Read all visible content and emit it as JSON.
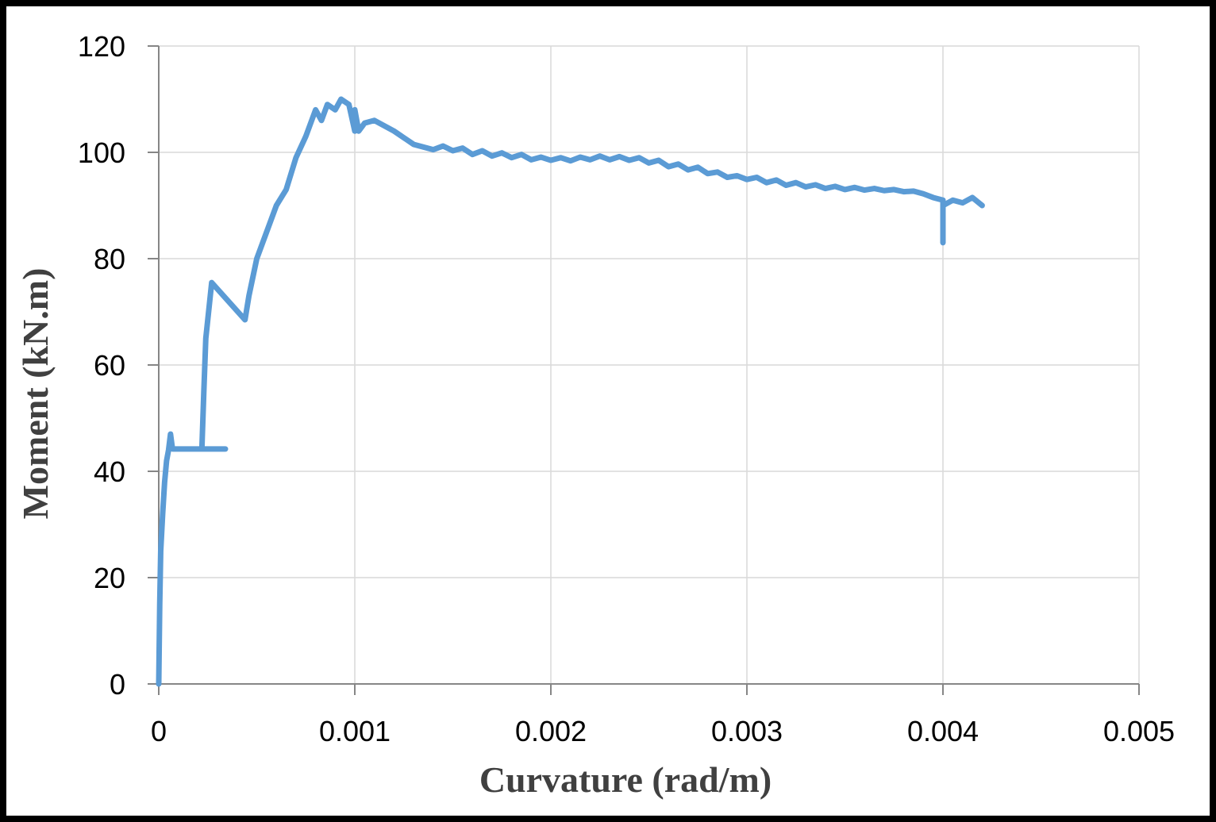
{
  "chart_data": {
    "type": "line",
    "x_label": "Curvature (rad/m)",
    "y_label": "Moment (kN.m)",
    "xlim": [
      0,
      0.005
    ],
    "xticks": [
      0,
      0.001,
      0.002,
      0.003,
      0.004,
      0.005
    ],
    "ylim": [
      0,
      120
    ],
    "yticks": [
      0,
      20,
      40,
      60,
      80,
      100,
      120
    ],
    "grid": true,
    "series": [
      {
        "color": "#5b9bd5",
        "x": [
          0,
          5e-06,
          1e-05,
          2e-05,
          3e-05,
          4e-05,
          5e-05,
          6e-05,
          7e-05,
          0.0001,
          0.00034,
          0.00022,
          0.00023,
          0.00024,
          0.00026,
          0.00027,
          0.00044,
          0.00046,
          0.0005,
          0.00055,
          0.0006,
          0.00065,
          0.0007,
          0.00075,
          0.0008,
          0.00083,
          0.00086,
          0.0009,
          0.00093,
          0.00097,
          0.001,
          0.001,
          0.00102,
          0.00105,
          0.0011,
          0.0012,
          0.0013,
          0.0014,
          0.00145,
          0.0015,
          0.00155,
          0.0016,
          0.00165,
          0.0017,
          0.00175,
          0.0018,
          0.00185,
          0.0019,
          0.00195,
          0.002,
          0.00205,
          0.0021,
          0.00215,
          0.0022,
          0.00225,
          0.0023,
          0.00235,
          0.0024,
          0.00245,
          0.0025,
          0.00255,
          0.0026,
          0.00265,
          0.0027,
          0.00275,
          0.0028,
          0.00285,
          0.0029,
          0.00295,
          0.003,
          0.00305,
          0.0031,
          0.00315,
          0.0032,
          0.00325,
          0.0033,
          0.00335,
          0.0034,
          0.00345,
          0.0035,
          0.00355,
          0.0036,
          0.00365,
          0.0037,
          0.00375,
          0.0038,
          0.00385,
          0.0039,
          0.00395,
          0.004,
          0.004,
          0.004,
          0.00405,
          0.0041,
          0.00415,
          0.0042
        ],
        "values": [
          0,
          15,
          25,
          32,
          38,
          42,
          44,
          47,
          44.2,
          44.2,
          44.2,
          44.2,
          55,
          65,
          72,
          75.5,
          68.5,
          73,
          80,
          85,
          90,
          93,
          99,
          103,
          108,
          106,
          109,
          108,
          110,
          109,
          104,
          108,
          104,
          105.5,
          106,
          104,
          101.5,
          100.5,
          101.2,
          100.3,
          100.8,
          99.6,
          100.3,
          99.3,
          99.9,
          99,
          99.6,
          98.6,
          99.1,
          98.5,
          99,
          98.4,
          99.1,
          98.6,
          99.3,
          98.6,
          99.2,
          98.5,
          99,
          98,
          98.5,
          97.3,
          97.8,
          96.7,
          97.2,
          96,
          96.3,
          95.3,
          95.6,
          94.9,
          95.3,
          94.3,
          94.8,
          93.8,
          94.3,
          93.5,
          93.9,
          93.2,
          93.6,
          93,
          93.4,
          92.9,
          93.2,
          92.8,
          93,
          92.6,
          92.7,
          92.2,
          91.5,
          91,
          83,
          90,
          91,
          90.5,
          91.5,
          90
        ]
      }
    ]
  }
}
